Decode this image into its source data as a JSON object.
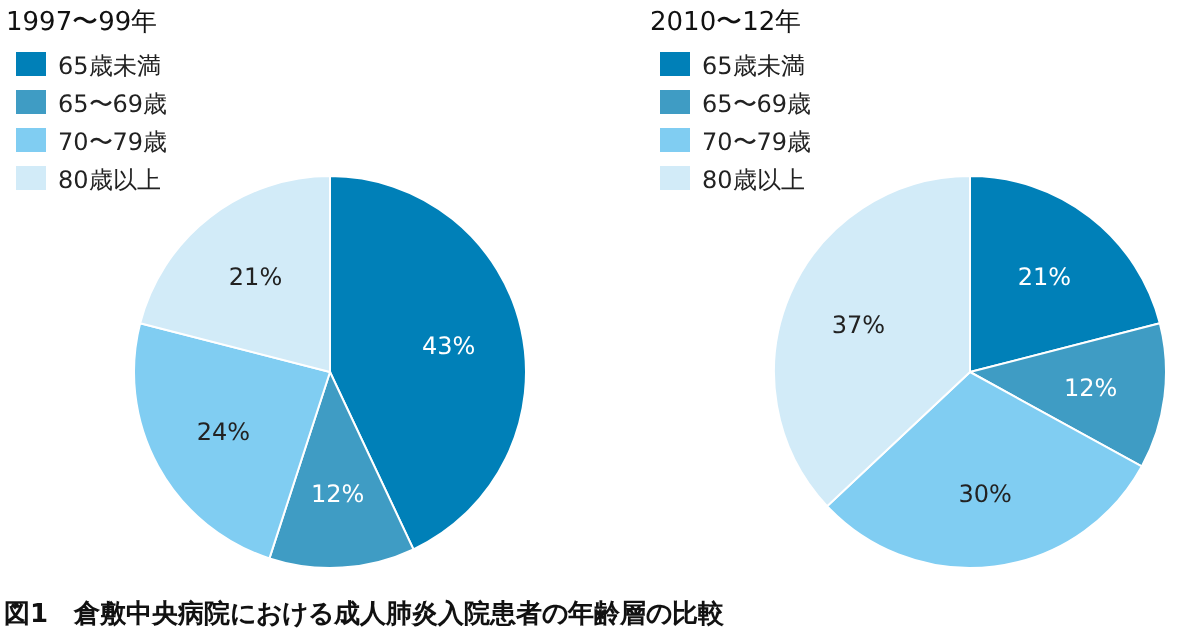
{
  "chart_data": [
    {
      "type": "pie",
      "title": "1997〜99年",
      "categories": [
        "65歳未満",
        "65〜69歳",
        "70〜79歳",
        "80歳以上"
      ],
      "values": [
        43,
        12,
        24,
        21
      ],
      "value_labels": [
        "43%",
        "12%",
        "24%",
        "21%"
      ],
      "colors": [
        "#0080b8",
        "#3f9cc4",
        "#80cdf2",
        "#d2ebf8"
      ],
      "legend": "top left",
      "annotations": [
        "図1　倉敷中央病院における成人肺炎入院患者の年齢層の比較"
      ]
    },
    {
      "type": "pie",
      "title": "2010〜12年",
      "categories": [
        "65歳未満",
        "65〜69歳",
        "70〜79歳",
        "80歳以上"
      ],
      "values": [
        21,
        12,
        30,
        37
      ],
      "value_labels": [
        "21%",
        "12%",
        "30%",
        "37%"
      ],
      "colors": [
        "#0080b8",
        "#3f9cc4",
        "#80cdf2",
        "#d2ebf8"
      ],
      "legend": "top left"
    }
  ]
}
